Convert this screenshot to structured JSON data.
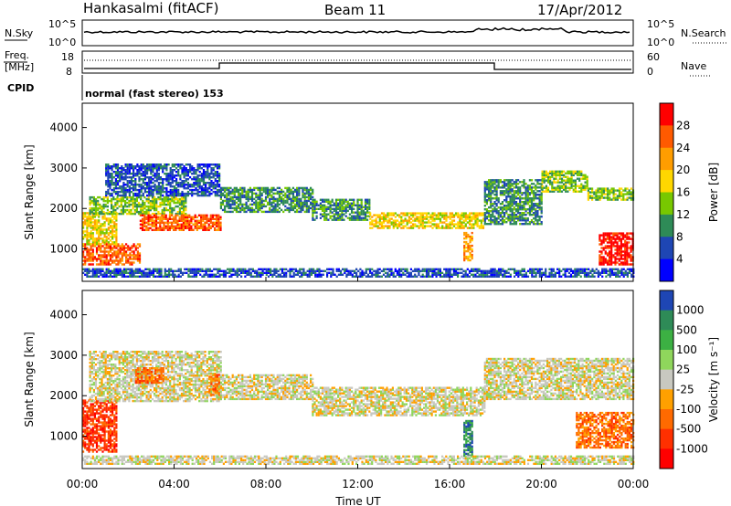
{
  "header": {
    "station": "Hankasalmi (fitACF)",
    "beam": "Beam 11",
    "date": "17/Apr/2012"
  },
  "panels": {
    "nsky_label": "N.Sky",
    "nsearch_label": "N.Search",
    "freq_label_1": "Freq.",
    "freq_label_2": "[MHz]",
    "nave_label": "Nave",
    "cpid_label": "CPID",
    "cpid_text": "normal (fast stereo) 153",
    "noise_ticks_left": [
      "10^5",
      "10^0"
    ],
    "noise_ticks_right": [
      "10^5",
      "10^0"
    ],
    "freq_ticks": [
      "18",
      "8"
    ],
    "nave_ticks": [
      "60",
      "0"
    ]
  },
  "chart_data": [
    {
      "type": "heatmap",
      "quantity": "Power",
      "ylabel": "Slant Range [km]",
      "xlabel": "Time UT",
      "x_ticks": [
        "00:00",
        "04:00",
        "08:00",
        "12:00",
        "16:00",
        "20:00",
        "00:00"
      ],
      "y_ticks": [
        "1000",
        "2000",
        "3000",
        "4000"
      ],
      "ylim": [
        200,
        4600
      ],
      "xlim_hours": [
        0,
        24
      ],
      "colorbar": {
        "label": "Power [dB]",
        "ticks": [
          "28",
          "24",
          "20",
          "16",
          "12",
          "8",
          "4"
        ],
        "colors": [
          "#ff0000",
          "#ff5a00",
          "#ff9d00",
          "#ffd700",
          "#78c800",
          "#2e8b57",
          "#1e46b4",
          "#0000ff"
        ]
      },
      "bands": [
        {
          "t0": 0.0,
          "t1": 2.5,
          "r0": 600,
          "r1": 1100,
          "level": 1
        },
        {
          "t0": 0.0,
          "t1": 1.5,
          "r0": 1100,
          "r1": 1900,
          "level": 3
        },
        {
          "t0": 0.3,
          "t1": 4.5,
          "r0": 1850,
          "r1": 2300,
          "level": 4
        },
        {
          "t0": 2.5,
          "t1": 6.0,
          "r0": 1450,
          "r1": 1850,
          "level": 1
        },
        {
          "t0": 1.0,
          "t1": 6.0,
          "r0": 2300,
          "r1": 3100,
          "level": 6
        },
        {
          "t0": 6.0,
          "t1": 10.0,
          "r0": 1900,
          "r1": 2500,
          "level": 5
        },
        {
          "t0": 10.0,
          "t1": 12.5,
          "r0": 1700,
          "r1": 2200,
          "level": 5
        },
        {
          "t0": 12.5,
          "t1": 17.5,
          "r0": 1500,
          "r1": 1900,
          "level": 3
        },
        {
          "t0": 17.5,
          "t1": 20.0,
          "r0": 1600,
          "r1": 2700,
          "level": 5
        },
        {
          "t0": 20.0,
          "t1": 22.0,
          "r0": 2400,
          "r1": 2900,
          "level": 4
        },
        {
          "t0": 22.0,
          "t1": 24.0,
          "r0": 2200,
          "r1": 2500,
          "level": 4
        },
        {
          "t0": 22.5,
          "t1": 24.0,
          "r0": 600,
          "r1": 1400,
          "level": 0
        },
        {
          "t0": 16.6,
          "t1": 17.0,
          "r0": 700,
          "r1": 1400,
          "level": 2
        },
        {
          "t0": 0.0,
          "t1": 24.0,
          "r0": 300,
          "r1": 500,
          "level": 6
        }
      ]
    },
    {
      "type": "heatmap",
      "quantity": "Velocity",
      "ylabel": "Slant Range [km]",
      "xlabel": "Time UT",
      "x_ticks": [
        "00:00",
        "04:00",
        "08:00",
        "12:00",
        "16:00",
        "20:00",
        "00:00"
      ],
      "y_ticks": [
        "1000",
        "2000",
        "3000",
        "4000"
      ],
      "ylim": [
        200,
        4600
      ],
      "xlim_hours": [
        0,
        24
      ],
      "colorbar": {
        "label": "Velocity [m s⁻¹]",
        "ticks": [
          "1000",
          "500",
          "100",
          "25",
          "-25",
          "-100",
          "-500",
          "-1000"
        ],
        "colors": [
          "#1e46b4",
          "#2e8b57",
          "#3cb043",
          "#8fd65c",
          "#c8c8c0",
          "#ffa000",
          "#ff6a00",
          "#ff3000",
          "#ff0000"
        ]
      },
      "bands": [
        {
          "t0": 0.0,
          "t1": 1.5,
          "r0": 600,
          "r1": 1900,
          "level": 7
        },
        {
          "t0": 0.3,
          "t1": 6.0,
          "r0": 1850,
          "r1": 3100,
          "level": 4
        },
        {
          "t0": 2.3,
          "t1": 3.5,
          "r0": 2300,
          "r1": 2700,
          "level": 6
        },
        {
          "t0": 5.5,
          "t1": 6.0,
          "r0": 2000,
          "r1": 2500,
          "level": 6
        },
        {
          "t0": 6.0,
          "t1": 10.0,
          "r0": 1900,
          "r1": 2500,
          "level": 4
        },
        {
          "t0": 10.0,
          "t1": 17.5,
          "r0": 1500,
          "r1": 2200,
          "level": 4
        },
        {
          "t0": 17.5,
          "t1": 24.0,
          "r0": 1900,
          "r1": 2900,
          "level": 4
        },
        {
          "t0": 21.5,
          "t1": 24.0,
          "r0": 700,
          "r1": 1600,
          "level": 6
        },
        {
          "t0": 16.6,
          "t1": 17.0,
          "r0": 500,
          "r1": 1400,
          "level": 1
        },
        {
          "t0": 0.0,
          "t1": 24.0,
          "r0": 300,
          "r1": 500,
          "level": 4
        }
      ]
    }
  ]
}
